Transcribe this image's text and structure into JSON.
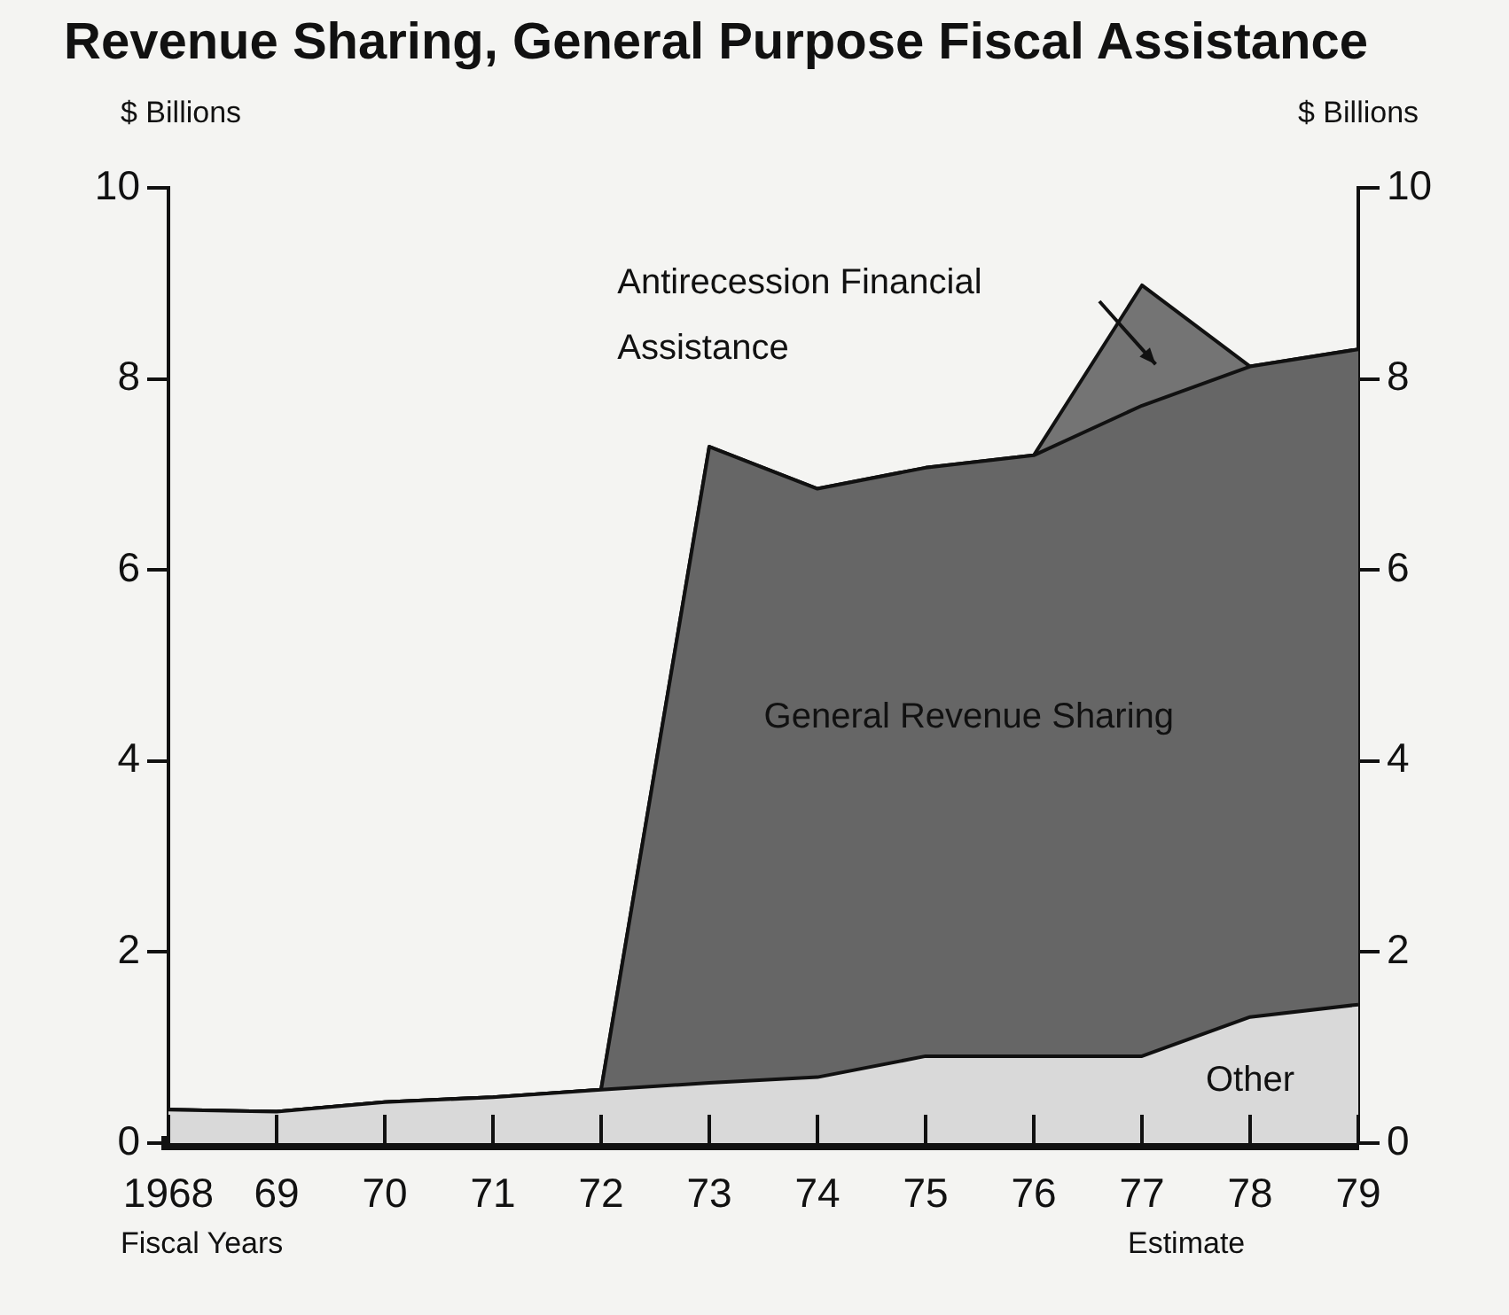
{
  "chart_data": {
    "type": "area",
    "stacked": true,
    "title": "Revenue Sharing, General Purpose Fiscal Assistance",
    "ylabel": "$ Billions",
    "y2label": "$ Billions",
    "xlabel": "Fiscal Years",
    "x": [
      1968,
      1969,
      1970,
      1971,
      1972,
      1973,
      1974,
      1975,
      1976,
      1977,
      1978,
      1979
    ],
    "xlim": [
      1968,
      1979
    ],
    "xticks": [
      {
        "value": 1968,
        "label": "1968"
      },
      {
        "value": 1969,
        "label": "69"
      },
      {
        "value": 1970,
        "label": "70"
      },
      {
        "value": 1971,
        "label": "71"
      },
      {
        "value": 1972,
        "label": "72"
      },
      {
        "value": 1973,
        "label": "73"
      },
      {
        "value": 1974,
        "label": "74"
      },
      {
        "value": 1975,
        "label": "75"
      },
      {
        "value": 1976,
        "label": "76"
      },
      {
        "value": 1977,
        "label": "77"
      },
      {
        "value": 1978,
        "label": "78"
      },
      {
        "value": 1979,
        "label": "79"
      }
    ],
    "ylim": [
      0,
      10
    ],
    "yticks": [
      0,
      2,
      4,
      6,
      8,
      10
    ],
    "y2lim": [
      0,
      10
    ],
    "y2ticks": [
      0,
      2,
      4,
      6,
      8,
      10
    ],
    "series": [
      {
        "name": "Other",
        "color": "#d9d9d9",
        "values": [
          0.35,
          0.33,
          0.43,
          0.48,
          0.56,
          0.63,
          0.69,
          0.91,
          0.91,
          0.91,
          1.32,
          1.45
        ]
      },
      {
        "name": "General Revenue Sharing",
        "color": "#666666",
        "values": [
          0,
          0,
          0,
          0,
          0,
          6.66,
          6.16,
          6.16,
          6.29,
          6.81,
          6.81,
          6.86
        ]
      },
      {
        "name": "Antirecession Financial Assistance",
        "color": "#747474",
        "values": [
          0,
          0,
          0,
          0,
          0,
          0,
          0,
          0,
          0,
          1.26,
          0,
          0
        ]
      }
    ],
    "annotations": [
      "Estimate"
    ],
    "legend": false,
    "grid": false,
    "marker": "none",
    "line_style": "solid"
  }
}
